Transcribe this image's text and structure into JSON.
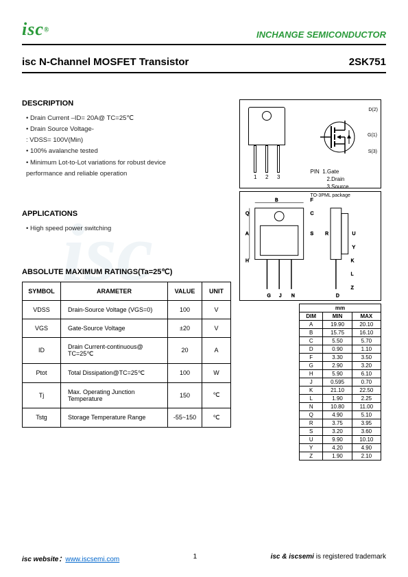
{
  "header": {
    "logo_text": "isc",
    "logo_reg": "®",
    "company": "INCHANGE SEMICONDUCTOR"
  },
  "title": {
    "product": "isc N-Channel MOSFET Transistor",
    "part_number": "2SK751"
  },
  "description": {
    "heading": "DESCRIPTION",
    "items": [
      "Drain Current –ID= 20A@ TC=25℃",
      "Drain Source Voltage-",
      ": VDSS= 100V(Min)",
      "100% avalanche tested",
      "Minimum Lot-to-Lot variations for robust device",
      "performance and reliable operation"
    ]
  },
  "applications": {
    "heading": "APPLICATIONS",
    "items": [
      "High speed power switching"
    ]
  },
  "ratings": {
    "heading": "ABSOLUTE MAXIMUM RATINGS(Ta=25℃)",
    "columns": [
      "SYMBOL",
      "ARAMETER",
      "VALUE",
      "UNIT"
    ],
    "rows": [
      {
        "symbol": "VDSS",
        "param": "Drain-Source Voltage (VGS=0)",
        "value": "100",
        "unit": "V"
      },
      {
        "symbol": "VGS",
        "param": "Gate-Source Voltage",
        "value": "±20",
        "unit": "V"
      },
      {
        "symbol": "ID",
        "param": "Drain Current-continuous@ TC=25℃",
        "value": "20",
        "unit": "A"
      },
      {
        "symbol": "Ptot",
        "param": "Total Dissipation@TC=25℃",
        "value": "100",
        "unit": "W"
      },
      {
        "symbol": "Tj",
        "param": "Max. Operating Junction Temperature",
        "value": "150",
        "unit": "℃"
      },
      {
        "symbol": "Tstg",
        "param": "Storage Temperature Range",
        "value": "-55~150",
        "unit": "℃"
      }
    ]
  },
  "pin_labels": {
    "d2": "D(2)",
    "g1": "G(1)",
    "s3": "S(3)",
    "pin_h": "PIN",
    "pin1": "1.Gate",
    "pin2": "2.Drain",
    "pin3": "3.Source",
    "pkg": "TO-3PML package",
    "n1": "1",
    "n2": "2",
    "n3": "3"
  },
  "dimensions": {
    "header_unit": "mm",
    "columns": [
      "DIM",
      "MIN",
      "MAX"
    ],
    "rows": [
      [
        "A",
        "19.90",
        "20.10"
      ],
      [
        "B",
        "15.75",
        "16.10"
      ],
      [
        "C",
        "5.50",
        "5.70"
      ],
      [
        "D",
        "0.90",
        "1.10"
      ],
      [
        "F",
        "3.30",
        "3.50"
      ],
      [
        "G",
        "2.90",
        "3.20"
      ],
      [
        "H",
        "5.90",
        "6.10"
      ],
      [
        "J",
        "0.595",
        "0.70"
      ],
      [
        "K",
        "21.10",
        "22.50"
      ],
      [
        "L",
        "1.90",
        "2.25"
      ],
      [
        "N",
        "10.80",
        "11.00"
      ],
      [
        "Q",
        "4.90",
        "5.10"
      ],
      [
        "R",
        "3.75",
        "3.95"
      ],
      [
        "S",
        "3.20",
        "3.60"
      ],
      [
        "U",
        "9.90",
        "10.10"
      ],
      [
        "Y",
        "4.20",
        "4.90"
      ],
      [
        "Z",
        "1.90",
        "2.10"
      ]
    ]
  },
  "footer": {
    "website_label": "isc website：",
    "website_url": "www.iscsemi.com",
    "page": "1",
    "trademark_pre": "isc & iscsemi",
    "trademark_post": " is registered trademark"
  },
  "colors": {
    "brand_green": "#2a9a3a",
    "link_blue": "#0066cc",
    "text": "#000000"
  }
}
